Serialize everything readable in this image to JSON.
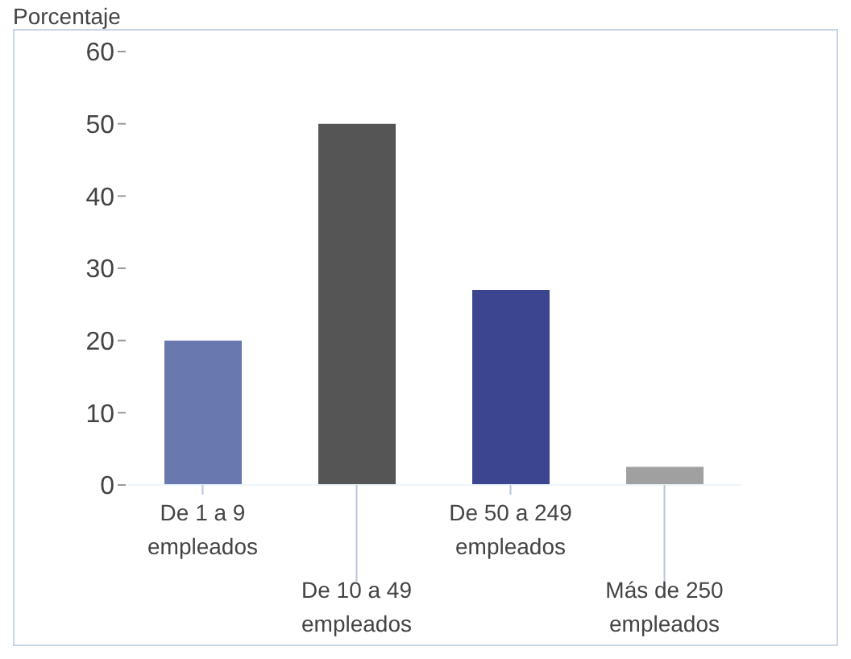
{
  "chart_data": {
    "type": "bar",
    "ylabel": "Porcentaje",
    "categories": [
      "De 1 a 9 empleados",
      "De 10 a 49 empleados",
      "De 50 a 249 empleados",
      "Más de 250 empleados"
    ],
    "values": [
      20,
      50,
      27,
      2.5
    ],
    "colors": [
      "#6a78b0",
      "#555555",
      "#3c4690",
      "#a0a0a0"
    ],
    "ylim": [
      0,
      60
    ],
    "yticks": [
      0,
      10,
      20,
      30,
      40,
      50,
      60
    ],
    "grid": false,
    "legend": false
  }
}
